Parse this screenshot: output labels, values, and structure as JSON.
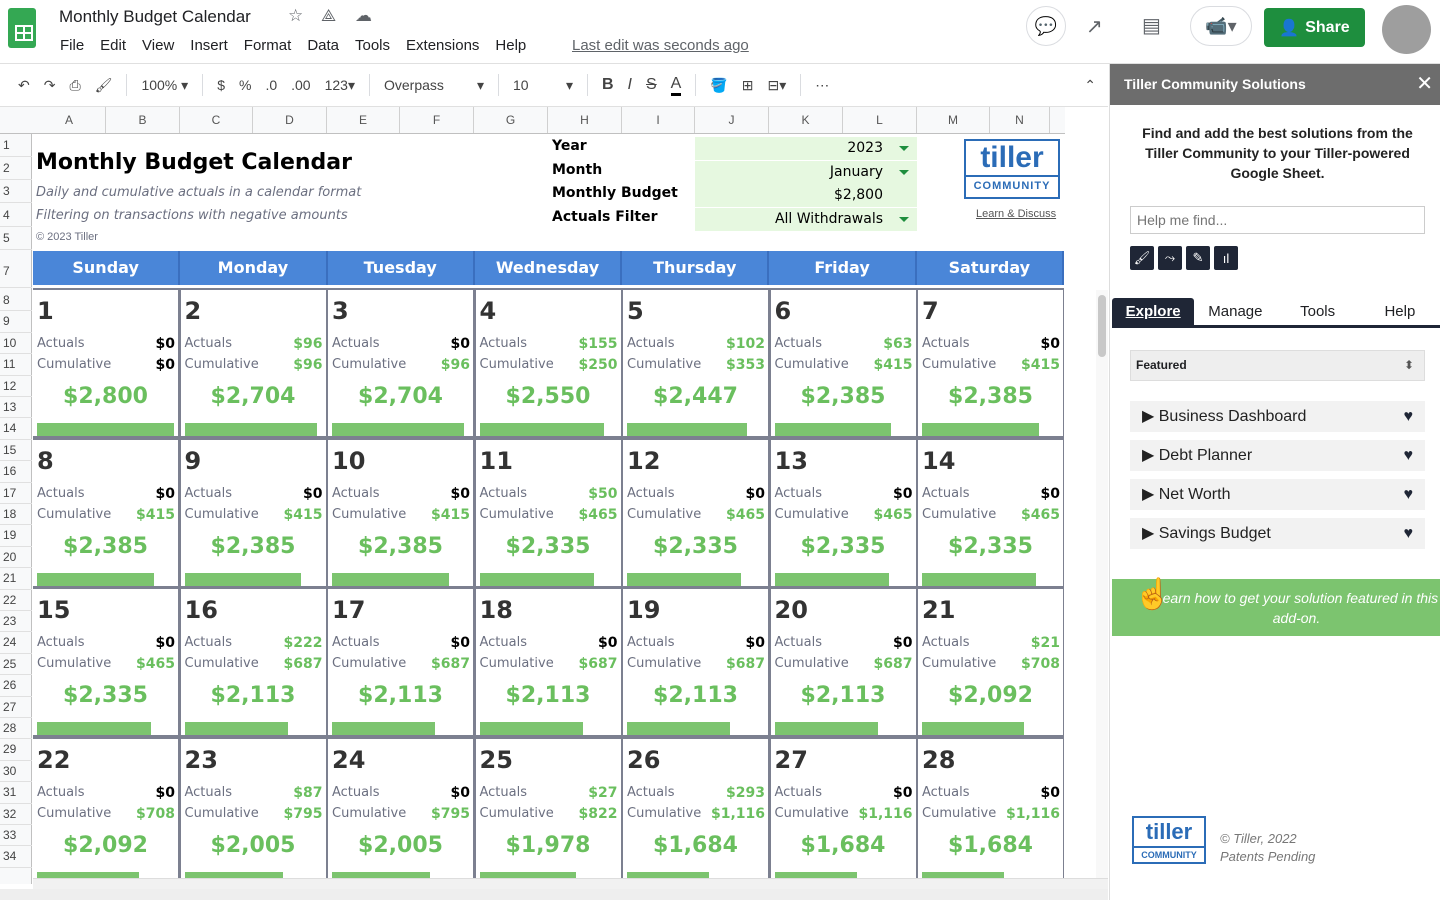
{
  "app": {
    "title": "Monthly Budget Calendar",
    "menu": [
      "File",
      "Edit",
      "View",
      "Insert",
      "Format",
      "Data",
      "Tools",
      "Extensions",
      "Help"
    ],
    "last_edit": "Last edit was seconds ago",
    "share_label": "Share"
  },
  "toolbar": {
    "zoom": "100%",
    "currency": "$",
    "percent": "%",
    "dec_less": ".0",
    "dec_more": ".00",
    "format_more": "123",
    "font": "Overpass",
    "font_size": "10",
    "bold": "B",
    "italic": "I",
    "strike": "S",
    "text_color": "A"
  },
  "columns": [
    "A",
    "B",
    "C",
    "D",
    "E",
    "F",
    "G",
    "H",
    "I",
    "J",
    "K",
    "L",
    "M",
    "N"
  ],
  "rows": [
    "1",
    "2",
    "3",
    "4",
    "5",
    "7",
    "8",
    "9",
    "10",
    "11",
    "12",
    "13",
    "14",
    "15",
    "16",
    "17",
    "18",
    "19",
    "20",
    "21",
    "22",
    "23",
    "24",
    "25",
    "26",
    "27",
    "28",
    "29",
    "30",
    "31",
    "32",
    "33",
    "34"
  ],
  "sheet": {
    "title": "Monthly Budget Calendar",
    "subtitle1": "Daily and cumulative actuals in a calendar format",
    "subtitle2": "Filtering on transactions with negative amounts",
    "copyright": "© 2023 Tiller",
    "params": [
      {
        "label": "Year",
        "value": "2023",
        "dropdown": true
      },
      {
        "label": "Month",
        "value": "January",
        "dropdown": true
      },
      {
        "label": "Monthly Budget",
        "value": "$2,800",
        "dropdown": false
      },
      {
        "label": "Actuals Filter",
        "value": "All Withdrawals",
        "dropdown": true
      }
    ],
    "logo": "tiller COMMUNITY",
    "learn": "Learn & Discuss",
    "weekdays": [
      "Sunday",
      "Monday",
      "Tuesday",
      "Wednesday",
      "Thursday",
      "Friday",
      "Saturday"
    ],
    "actuals_label": "Actuals",
    "cumulative_label": "Cumulative",
    "budget": 2800,
    "colors": {
      "header": "#4a86d8",
      "green": "#6abf5e",
      "param_bg": "#e6f8e0"
    },
    "days": [
      {
        "day": "1",
        "actuals": "$0",
        "cumulative": "$0",
        "remaining": "$2,800"
      },
      {
        "day": "2",
        "actuals": "$96",
        "cumulative": "$96",
        "remaining": "$2,704"
      },
      {
        "day": "3",
        "actuals": "$0",
        "cumulative": "$96",
        "remaining": "$2,704"
      },
      {
        "day": "4",
        "actuals": "$155",
        "cumulative": "$250",
        "remaining": "$2,550"
      },
      {
        "day": "5",
        "actuals": "$102",
        "cumulative": "$353",
        "remaining": "$2,447"
      },
      {
        "day": "6",
        "actuals": "$63",
        "cumulative": "$415",
        "remaining": "$2,385"
      },
      {
        "day": "7",
        "actuals": "$0",
        "cumulative": "$415",
        "remaining": "$2,385"
      },
      {
        "day": "8",
        "actuals": "$0",
        "cumulative": "$415",
        "remaining": "$2,385"
      },
      {
        "day": "9",
        "actuals": "$0",
        "cumulative": "$415",
        "remaining": "$2,385"
      },
      {
        "day": "10",
        "actuals": "$0",
        "cumulative": "$415",
        "remaining": "$2,385"
      },
      {
        "day": "11",
        "actuals": "$50",
        "cumulative": "$465",
        "remaining": "$2,335"
      },
      {
        "day": "12",
        "actuals": "$0",
        "cumulative": "$465",
        "remaining": "$2,335"
      },
      {
        "day": "13",
        "actuals": "$0",
        "cumulative": "$465",
        "remaining": "$2,335"
      },
      {
        "day": "14",
        "actuals": "$0",
        "cumulative": "$465",
        "remaining": "$2,335"
      },
      {
        "day": "15",
        "actuals": "$0",
        "cumulative": "$465",
        "remaining": "$2,335"
      },
      {
        "day": "16",
        "actuals": "$222",
        "cumulative": "$687",
        "remaining": "$2,113"
      },
      {
        "day": "17",
        "actuals": "$0",
        "cumulative": "$687",
        "remaining": "$2,113"
      },
      {
        "day": "18",
        "actuals": "$0",
        "cumulative": "$687",
        "remaining": "$2,113"
      },
      {
        "day": "19",
        "actuals": "$0",
        "cumulative": "$687",
        "remaining": "$2,113"
      },
      {
        "day": "20",
        "actuals": "$0",
        "cumulative": "$687",
        "remaining": "$2,113"
      },
      {
        "day": "21",
        "actuals": "$21",
        "cumulative": "$708",
        "remaining": "$2,092"
      },
      {
        "day": "22",
        "actuals": "$0",
        "cumulative": "$708",
        "remaining": "$2,092"
      },
      {
        "day": "23",
        "actuals": "$87",
        "cumulative": "$795",
        "remaining": "$2,005"
      },
      {
        "day": "24",
        "actuals": "$0",
        "cumulative": "$795",
        "remaining": "$2,005"
      },
      {
        "day": "25",
        "actuals": "$27",
        "cumulative": "$822",
        "remaining": "$1,978"
      },
      {
        "day": "26",
        "actuals": "$293",
        "cumulative": "$1,116",
        "remaining": "$1,684"
      },
      {
        "day": "27",
        "actuals": "$0",
        "cumulative": "$1,116",
        "remaining": "$1,684"
      },
      {
        "day": "28",
        "actuals": "$0",
        "cumulative": "$1,116",
        "remaining": "$1,684"
      }
    ]
  },
  "panel": {
    "title": "Tiller Community Solutions",
    "intro": "Find and add the best solutions from the Tiller Community to your Tiller-powered Google Sheet.",
    "search_placeholder": "Help me find...",
    "tabs": [
      "Explore",
      "Manage",
      "Tools",
      "Help"
    ],
    "filter": "Featured",
    "items": [
      "Business Dashboard",
      "Debt Planner",
      "Net Worth",
      "Savings Budget"
    ],
    "banner": "Learn how to get your solution featured in this add-on.",
    "logo": "tiller COMMUNITY",
    "copyright": "© Tiller, 2022",
    "patents": "Patents Pending"
  }
}
